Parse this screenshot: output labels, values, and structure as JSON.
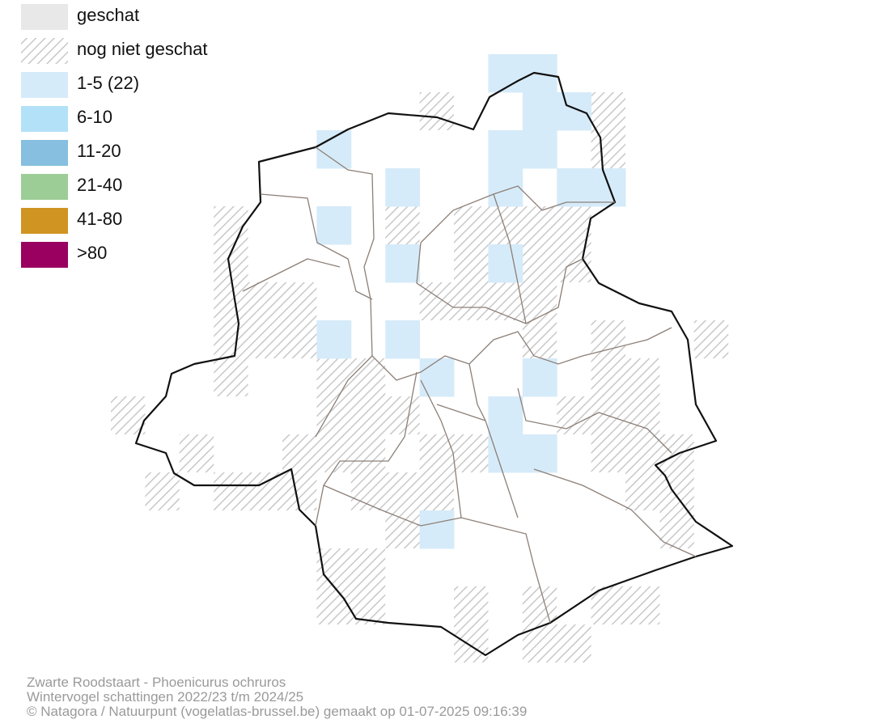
{
  "legend": {
    "items": [
      {
        "label": "geschat",
        "color": "#e8e8e8"
      },
      {
        "label": "nog niet geschat"
      },
      {
        "label": "1-5 (22)",
        "color": "#d6ebf9"
      },
      {
        "label": "6-10",
        "color": "#b3e1f8"
      },
      {
        "label": "11-20",
        "color": "#86bfdf"
      },
      {
        "label": "21-40",
        "color": "#9ccd96"
      },
      {
        "label": "41-80",
        "color": "#d09422"
      },
      {
        "label": ">80",
        "color": "#990060"
      }
    ]
  },
  "footer": {
    "lines": [
      "Zwarte Roodstaart - Phoenicurus ochruros",
      "Wintervogel schattingen 2022/23 t/m 2024/25",
      "© Natagora / Natuurpunt (vogelatlas-brussel.be) gemaakt op 01-07-2025 09:16:39"
    ]
  }
}
